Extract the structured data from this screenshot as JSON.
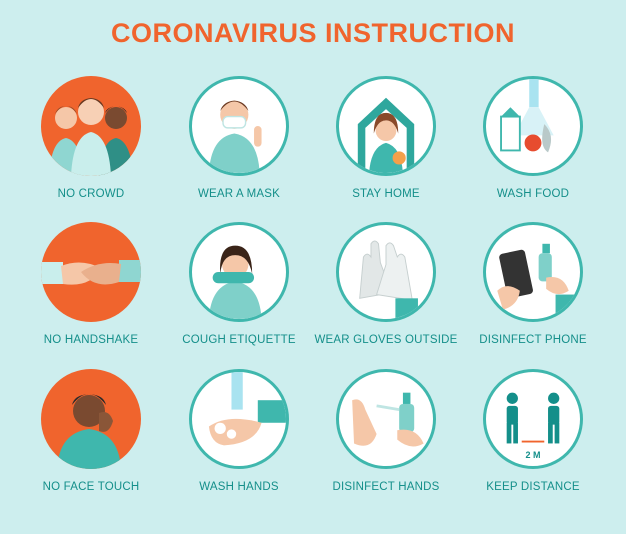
{
  "title": "CORONAVIRUS INSTRUCTION",
  "colors": {
    "background": "#cdeeee",
    "accent": "#f0642d",
    "teal": "#3fb7ad",
    "label": "#148f8a"
  },
  "items": [
    {
      "label": "NO CROWD",
      "icon": "crowd-icon"
    },
    {
      "label": "WEAR A MASK",
      "icon": "mask-icon"
    },
    {
      "label": "STAY HOME",
      "icon": "home-icon"
    },
    {
      "label": "WASH FOOD",
      "icon": "wash-food-icon"
    },
    {
      "label": "NO HANDSHAKE",
      "icon": "handshake-icon"
    },
    {
      "label": "COUGH ETIQUETTE",
      "icon": "cough-icon"
    },
    {
      "label": "WEAR GLOVES OUTSIDE",
      "icon": "gloves-icon"
    },
    {
      "label": "DISINFECT PHONE",
      "icon": "phone-icon"
    },
    {
      "label": "NO FACE TOUCH",
      "icon": "face-touch-icon"
    },
    {
      "label": "WASH HANDS",
      "icon": "wash-hands-icon"
    },
    {
      "label": "DISINFECT HANDS",
      "icon": "sanitizer-icon"
    },
    {
      "label": "KEEP DISTANCE",
      "icon": "distance-icon",
      "distance_text": "2 M"
    }
  ]
}
